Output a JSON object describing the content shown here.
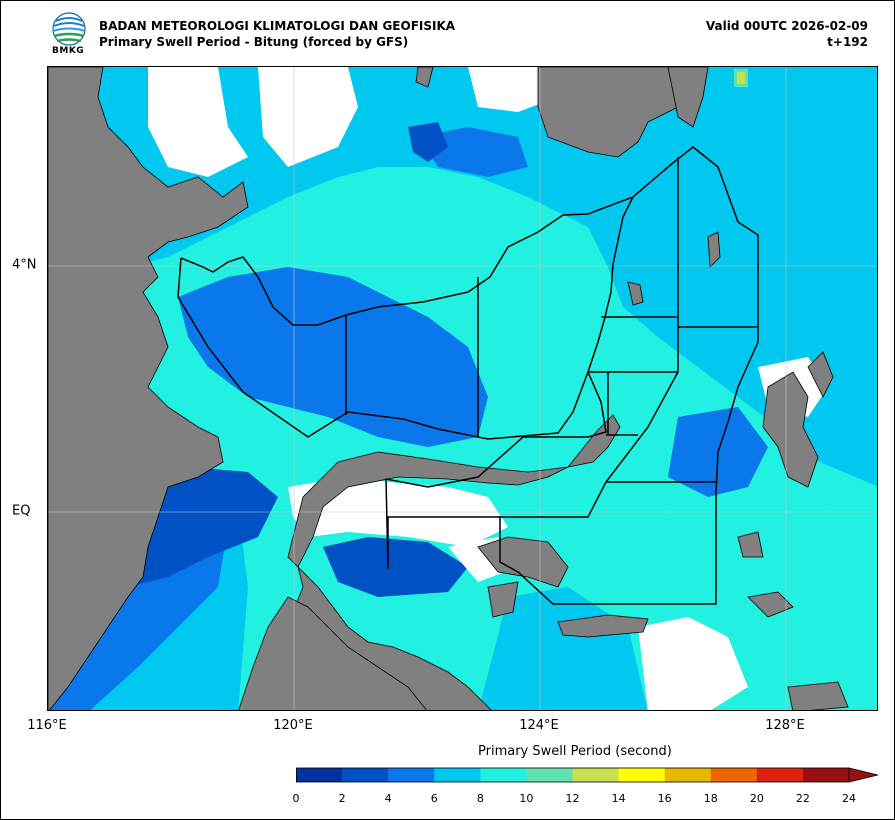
{
  "header": {
    "org": "BADAN METEOROLOGI KLIMATOLOGI DAN GEOFISIKA",
    "subtitle": "Primary Swell Period - Bitung (forced by GFS)",
    "valid": "Valid 00UTC 2026-02-09",
    "lead": "t+192",
    "logo_text": "BMKG"
  },
  "axes": {
    "lon_ticks": [
      "116°E",
      "120°E",
      "124°E",
      "128°E"
    ],
    "lat_ticks": [
      "4°N",
      "EQ"
    ]
  },
  "colorbar": {
    "title": "Primary Swell Period (second)",
    "labels": [
      "0",
      "2",
      "4",
      "6",
      "8",
      "10",
      "12",
      "14",
      "16",
      "18",
      "20",
      "22",
      "24"
    ],
    "colors": [
      "#0033a0",
      "#0052c4",
      "#0a78eb",
      "#00c8ee",
      "#22f0e0",
      "#60e2b0",
      "#ccdf52",
      "#ffff00",
      "#e8b800",
      "#ee6600",
      "#dd2211",
      "#9a1010"
    ],
    "extend_color": "#9a1010"
  },
  "colors": {
    "land": "#808080",
    "nodata": "#ffffff",
    "zone_line": "#000000",
    "grid": "#c8c8c8"
  }
}
